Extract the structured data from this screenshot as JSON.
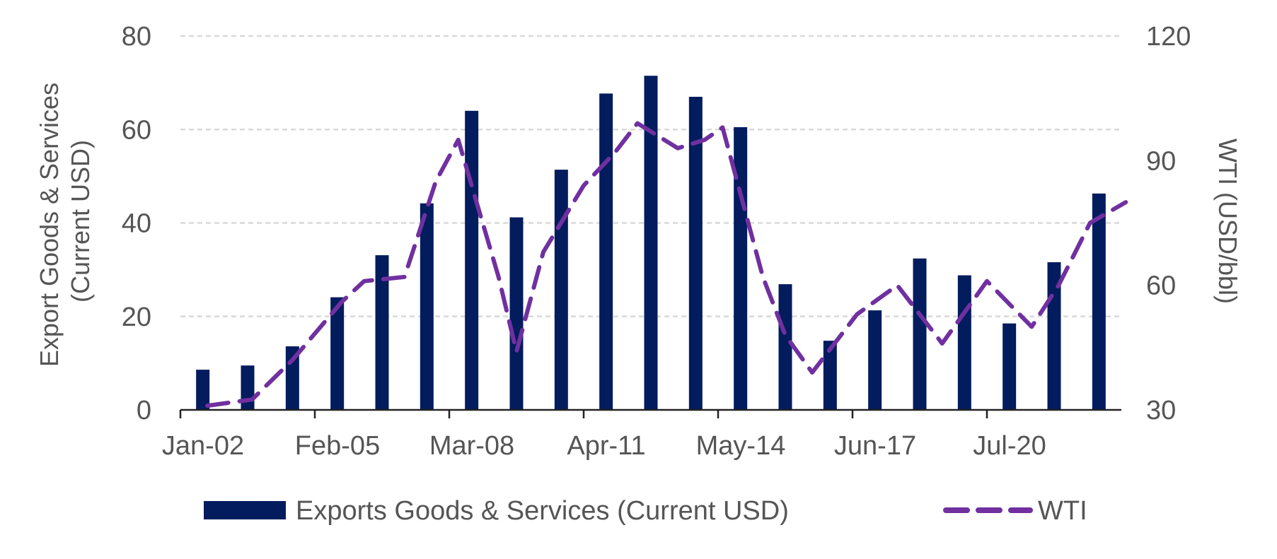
{
  "chart_data": {
    "type": "bar",
    "x": [
      "2002",
      "2003",
      "2004",
      "2005",
      "2006",
      "2007",
      "2008",
      "2009",
      "2010",
      "2011",
      "2012",
      "2013",
      "2014",
      "2015",
      "2016",
      "2017",
      "2018",
      "2019",
      "2020",
      "2021",
      "2022"
    ],
    "x_tick_labels": [
      "Jan-02",
      "Feb-05",
      "Mar-08",
      "Apr-11",
      "May-14",
      "Jun-17",
      "Jul-20"
    ],
    "series": [
      {
        "name": "Exports Goods & Services (Current USD)",
        "type": "bar",
        "axis": "left",
        "color": "#021c5e",
        "values": [
          8.6,
          9.5,
          13.6,
          24.1,
          33.1,
          44.2,
          64.0,
          41.2,
          51.4,
          67.7,
          71.5,
          67.0,
          60.5,
          26.9,
          14.8,
          21.3,
          32.4,
          28.8,
          18.5,
          31.6,
          46.3
        ]
      },
      {
        "name": "WTI",
        "type": "line",
        "style": "dashed",
        "axis": "right",
        "color": "#7030a0",
        "points": [
          {
            "x": 2002.1,
            "y": 31
          },
          {
            "x": 2003.1,
            "y": 32.5
          },
          {
            "x": 2004.0,
            "y": 42
          },
          {
            "x": 2005.1,
            "y": 56
          },
          {
            "x": 2005.6,
            "y": 61
          },
          {
            "x": 2006.5,
            "y": 62
          },
          {
            "x": 2007.2,
            "y": 85
          },
          {
            "x": 2007.7,
            "y": 95
          },
          {
            "x": 2008.6,
            "y": 62
          },
          {
            "x": 2009.0,
            "y": 44
          },
          {
            "x": 2009.6,
            "y": 68
          },
          {
            "x": 2010.5,
            "y": 84
          },
          {
            "x": 2011.2,
            "y": 92
          },
          {
            "x": 2011.7,
            "y": 99
          },
          {
            "x": 2012.6,
            "y": 93
          },
          {
            "x": 2013.2,
            "y": 95
          },
          {
            "x": 2013.6,
            "y": 98
          },
          {
            "x": 2014.5,
            "y": 62
          },
          {
            "x": 2015.0,
            "y": 48
          },
          {
            "x": 2015.6,
            "y": 39
          },
          {
            "x": 2016.6,
            "y": 53
          },
          {
            "x": 2017.5,
            "y": 60
          },
          {
            "x": 2018.5,
            "y": 46
          },
          {
            "x": 2019.5,
            "y": 61
          },
          {
            "x": 2020.5,
            "y": 50
          },
          {
            "x": 2021.1,
            "y": 60
          },
          {
            "x": 2021.8,
            "y": 75
          },
          {
            "x": 2022.6,
            "y": 80
          }
        ]
      }
    ],
    "ylabel": "Export Goods & Services\n(Current USD)",
    "ylabel_lines": [
      "Export Goods & Services",
      "(Current USD)"
    ],
    "y2label": "WTI (USD/bbl)",
    "ylim": [
      0,
      80
    ],
    "y_ticks": [
      0,
      20,
      40,
      60,
      80
    ],
    "y2lim": [
      30,
      120
    ],
    "y2_ticks": [
      30,
      60,
      90,
      120
    ],
    "grid": true,
    "legend_position": "bottom",
    "colors": {
      "gridline": "#d9d9d9",
      "axis": "#222222",
      "text": "#555555"
    }
  }
}
